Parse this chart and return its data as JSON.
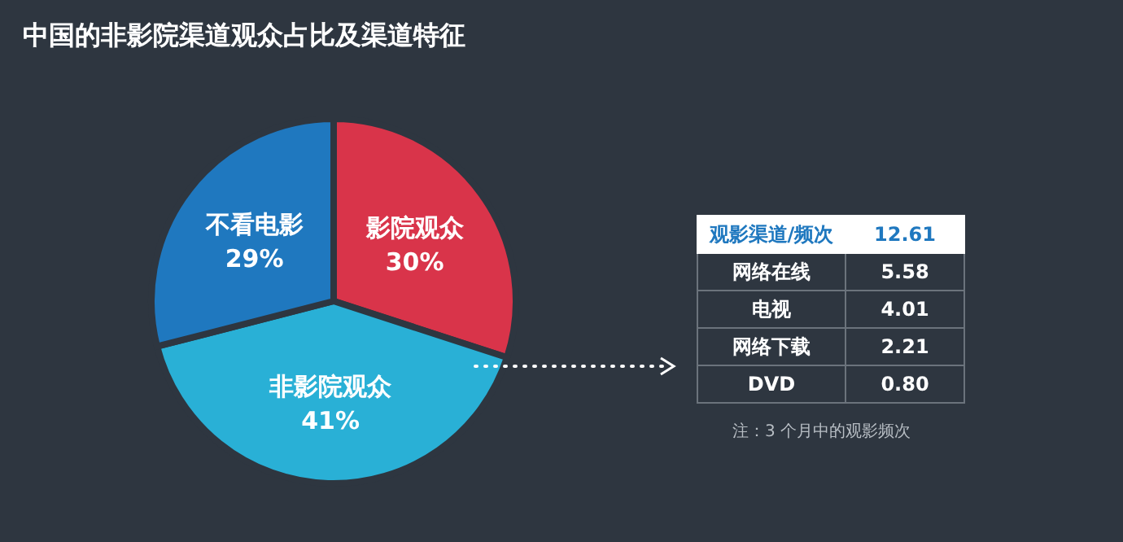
{
  "chart_data": [
    {
      "type": "pie",
      "title": "中国的非影院渠道观众占比及渠道特征",
      "categories": [
        "影院观众",
        "非影院观众",
        "不看电影"
      ],
      "values": [
        30,
        41,
        29
      ],
      "colors": [
        "#d9344a",
        "#29b0d6",
        "#1f78bf"
      ],
      "value_labels": [
        "30%",
        "41%",
        "29%"
      ],
      "legend": false
    },
    {
      "type": "other",
      "title": "观影渠道/频次",
      "categories": [
        "网络在线",
        "电视",
        "网络下载",
        "DVD"
      ],
      "values": [
        5.58,
        4.01,
        2.21,
        0.8
      ],
      "value_labels": [
        "5.58",
        "4.01",
        "2.21",
        "0.80"
      ],
      "annotations": [
        "12.61",
        "注：3 个月中的观影频次"
      ]
    }
  ]
}
